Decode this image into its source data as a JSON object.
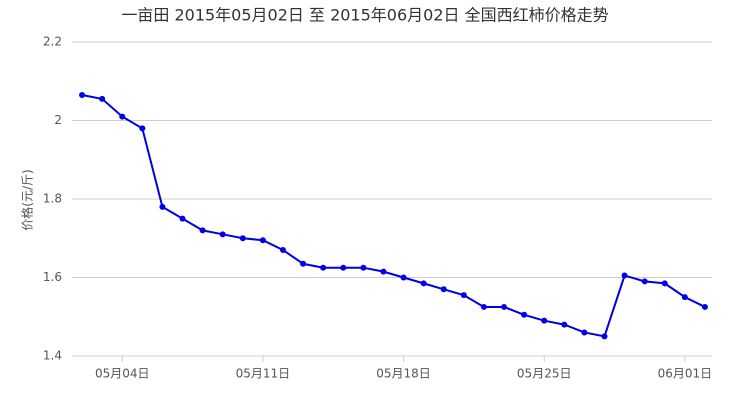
{
  "chart_data": {
    "type": "line",
    "title": "一亩田 2015年05月02日 至 2015年06月02日 全国西红柿价格走势",
    "y_label": "价格(元/斤)",
    "categories": [
      null,
      null,
      "05月04日",
      null,
      null,
      null,
      null,
      null,
      null,
      "05月11日",
      null,
      null,
      null,
      null,
      null,
      null,
      "05月18日",
      null,
      null,
      null,
      null,
      null,
      null,
      "05月25日",
      null,
      null,
      null,
      null,
      null,
      null,
      "06月01日",
      null
    ],
    "series": [
      {
        "name": "价格",
        "color": "#0000e6",
        "values": [
          2.065,
          2.055,
          2.01,
          1.98,
          1.78,
          1.75,
          1.72,
          1.71,
          1.7,
          1.695,
          1.67,
          1.635,
          1.625,
          1.625,
          1.625,
          1.615,
          1.6,
          1.585,
          1.57,
          1.555,
          1.525,
          1.525,
          1.505,
          1.49,
          1.48,
          1.46,
          1.45,
          1.605,
          1.59,
          1.585,
          1.55,
          1.525
        ]
      }
    ],
    "ylim": [
      1.4,
      2.2
    ],
    "yticks": [
      1.4,
      1.6,
      1.8,
      2,
      2.2
    ],
    "grid": true
  }
}
